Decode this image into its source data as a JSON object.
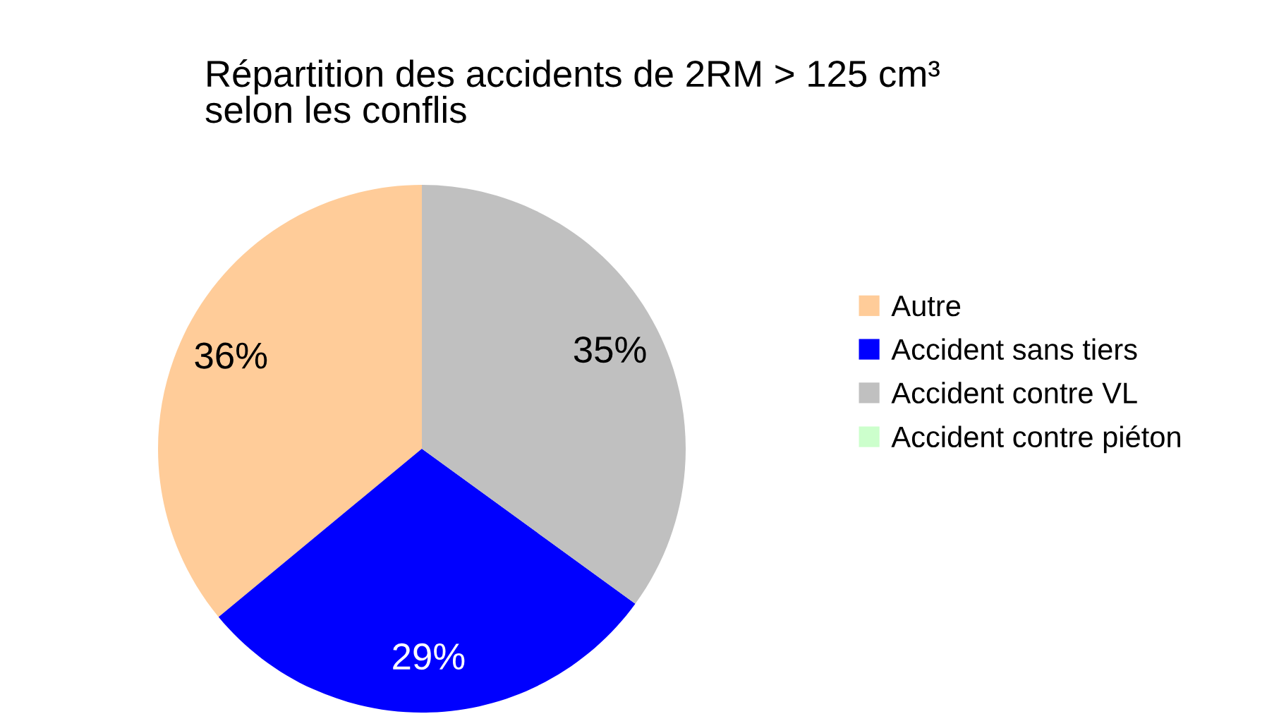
{
  "chart_data": {
    "type": "pie",
    "title": "Répartition des accidents de 2RM > 125 cm³\nselon les conflis",
    "categories": [
      "Autre",
      "Accident sans tiers",
      "Accident contre VL",
      "Accident contre piéton"
    ],
    "values": [
      36,
      29,
      35,
      0
    ],
    "colors": [
      "#ffcc99",
      "#0000ff",
      "#c0c0c0",
      "#ccffcc"
    ],
    "value_labels": [
      "36%",
      "29%",
      "35%",
      null
    ],
    "legend": "right"
  }
}
